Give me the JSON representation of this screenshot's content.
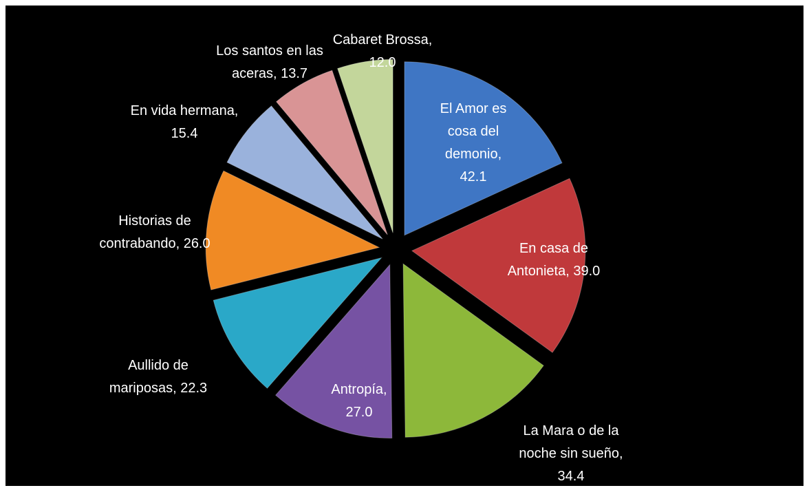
{
  "chart_data": {
    "type": "pie",
    "labels": [
      "El Amor es cosa del demonio, 42.1",
      "En casa de Antonieta, 39.0",
      "La Mara o de la noche sin sueño, 34.4",
      "Antropía, 27.0",
      "Aullido de mariposas, 22.3",
      "Historias de contrabando, 26.0",
      "En vida hermana, 15.4",
      "Los santos en las aceras, 13.7",
      "Cabaret Brossa, 12.0"
    ],
    "values": [
      42.1,
      39.0,
      34.4,
      27.0,
      22.3,
      26.0,
      15.4,
      13.7,
      12.0
    ],
    "colors": [
      "#3f76c4",
      "#c0393b",
      "#8db83a",
      "#7652a3",
      "#2aa8c8",
      "#f08a24",
      "#9ab2dc",
      "#d99495",
      "#c3d69b"
    ]
  }
}
